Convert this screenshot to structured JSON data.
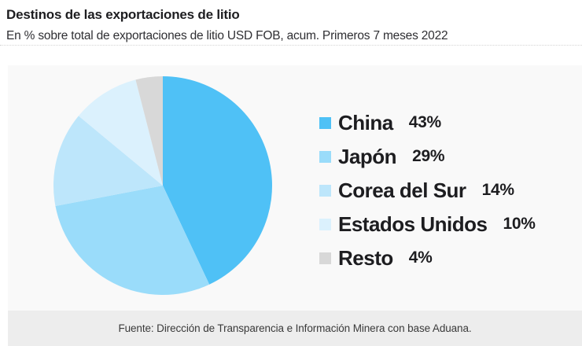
{
  "header": {
    "title": "Destinos de las exportaciones de litio",
    "subtitle": "En % sobre total de exportaciones de litio USD FOB, acum. Primeros 7 meses 2022"
  },
  "chart_data": {
    "type": "pie",
    "title": "Destinos de las exportaciones de litio",
    "subtitle": "En % sobre total de exportaciones de litio USD FOB, acum. Primeros 7 meses 2022",
    "unit": "%",
    "start_angle_deg": 0,
    "direction": "clockwise",
    "legend_position": "right",
    "categories": [
      "China",
      "Japón",
      "Corea del Sur",
      "Estados Unidos",
      "Resto"
    ],
    "values": [
      43,
      29,
      14,
      10,
      4
    ],
    "slices": [
      {
        "label": "China",
        "value": 43,
        "display": "43%",
        "color": "#4fc1f6"
      },
      {
        "label": "Japón",
        "value": 29,
        "display": "29%",
        "color": "#9adcfa"
      },
      {
        "label": "Corea del Sur",
        "value": 14,
        "display": "14%",
        "color": "#bde6fb"
      },
      {
        "label": "Estados Unidos",
        "value": 10,
        "display": "10%",
        "color": "#dbf1fd"
      },
      {
        "label": "Resto",
        "value": 4,
        "display": "4%",
        "color": "#d8d8d8"
      }
    ]
  },
  "footer": {
    "source": "Fuente: Dirección de Transparencia e Información Minera con base Aduana."
  },
  "colors": {
    "panel_bg": "#f9f9f9",
    "footer_bg": "#ededed",
    "text_dark": "#1d1d20"
  }
}
